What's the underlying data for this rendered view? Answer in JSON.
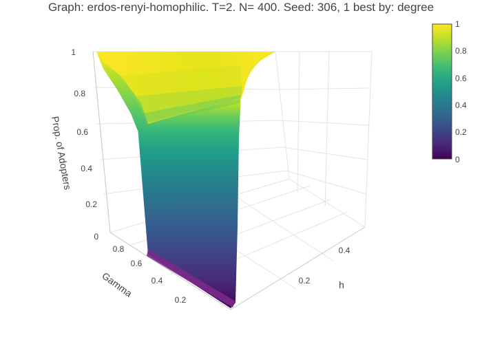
{
  "chart_data": {
    "type": "surface",
    "title": "Graph: erdos-renyi-homophilic. T=2. N= 400. Seed: 306, 1 best by: degree",
    "x_axis": {
      "label": "h",
      "ticks": [
        "0.2",
        "0.4"
      ],
      "range": [
        0,
        0.5
      ]
    },
    "y_axis": {
      "label": "Gamma",
      "ticks": [
        "0.2",
        "0.4",
        "0.6",
        "0.8"
      ],
      "range": [
        0,
        1
      ]
    },
    "z_axis": {
      "label": "Prop. of Adopters",
      "ticks": [
        "0",
        "0.2",
        "0.4",
        "0.6",
        "0.8",
        "1"
      ],
      "range": [
        0,
        1
      ]
    },
    "colorscale": {
      "name": "Viridis",
      "ticks": [
        "0",
        "0.2",
        "0.4",
        "0.6",
        "0.8",
        "1"
      ],
      "stops": [
        "#440154",
        "#482878",
        "#3e4989",
        "#31688e",
        "#26828e",
        "#1f9e89",
        "#35b779",
        "#6ece58",
        "#b5de2b",
        "#fde725"
      ]
    },
    "surface_profile": {
      "h_cliff": 0.05,
      "gamma": [
        0.05,
        0.2,
        0.4,
        0.6,
        0.8,
        1.0
      ],
      "low_h_edge_value": [
        0.0,
        0.0,
        0.0,
        0.05,
        0.65,
        0.95
      ],
      "high_h_value": [
        1,
        1,
        1,
        1,
        1,
        1
      ]
    }
  }
}
